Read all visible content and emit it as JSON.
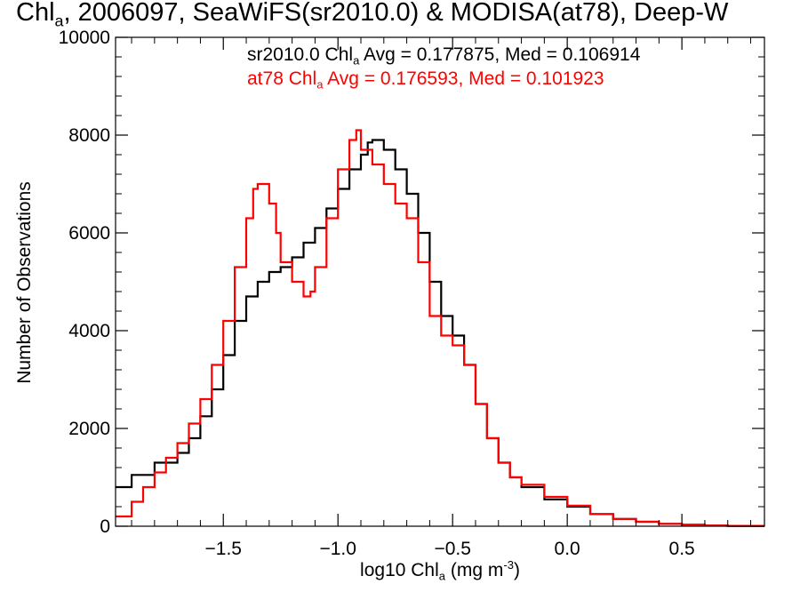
{
  "chart_data": {
    "type": "line",
    "title_parts": {
      "base": "Chl",
      "sub": "a",
      "rest": ", 2006097, SeaWiFS(sr2010.0) & MODISA(at78), Deep-W"
    },
    "xlabel_parts": {
      "pre": "log10 Chl",
      "sub": "a",
      "mid": " (mg m",
      "sup": "-3",
      "post": ")"
    },
    "ylabel": "Number of Observations",
    "xlim": [
      -1.97,
      0.86
    ],
    "ylim": [
      0,
      10000
    ],
    "x_ticks": [
      -1.5,
      -1.0,
      -0.5,
      0.0,
      0.5
    ],
    "x_tick_labels": [
      "−1.5",
      "−1.0",
      "−0.5",
      "0.0",
      "0.5"
    ],
    "y_ticks": [
      0,
      2000,
      4000,
      6000,
      8000,
      10000
    ],
    "y_tick_labels": [
      "0",
      "2000",
      "4000",
      "6000",
      "8000",
      "10000"
    ],
    "step": true,
    "series": [
      {
        "legend_parts": {
          "pre": "sr2010.0 Chl",
          "sub": "a",
          "post": " Avg = 0.177875, Med = 0.106914"
        },
        "color": "#000000",
        "points": [
          [
            -1.97,
            800
          ],
          [
            -1.9,
            1050
          ],
          [
            -1.8,
            1300
          ],
          [
            -1.7,
            1500
          ],
          [
            -1.65,
            1800
          ],
          [
            -1.6,
            2250
          ],
          [
            -1.55,
            2800
          ],
          [
            -1.5,
            3500
          ],
          [
            -1.45,
            4200
          ],
          [
            -1.4,
            4700
          ],
          [
            -1.35,
            5000
          ],
          [
            -1.3,
            5200
          ],
          [
            -1.25,
            5300
          ],
          [
            -1.2,
            5500
          ],
          [
            -1.15,
            5800
          ],
          [
            -1.1,
            6100
          ],
          [
            -1.05,
            6500
          ],
          [
            -1.0,
            6900
          ],
          [
            -0.95,
            7300
          ],
          [
            -0.9,
            7600
          ],
          [
            -0.87,
            7850
          ],
          [
            -0.85,
            7900
          ],
          [
            -0.8,
            7700
          ],
          [
            -0.75,
            7300
          ],
          [
            -0.7,
            6800
          ],
          [
            -0.65,
            6000
          ],
          [
            -0.6,
            5000
          ],
          [
            -0.55,
            4300
          ],
          [
            -0.5,
            3900
          ],
          [
            -0.45,
            3300
          ],
          [
            -0.4,
            2500
          ],
          [
            -0.35,
            1800
          ],
          [
            -0.3,
            1300
          ],
          [
            -0.25,
            1000
          ],
          [
            -0.2,
            800
          ],
          [
            -0.1,
            550
          ],
          [
            0.0,
            400
          ],
          [
            0.1,
            250
          ],
          [
            0.2,
            150
          ],
          [
            0.3,
            90
          ],
          [
            0.4,
            50
          ],
          [
            0.5,
            30
          ],
          [
            0.6,
            15
          ],
          [
            0.7,
            8
          ],
          [
            0.86,
            0
          ]
        ]
      },
      {
        "legend_parts": {
          "pre": "at78 Chl",
          "sub": "a",
          "post": " Avg = 0.176593, Med = 0.101923"
        },
        "color": "#ff0000",
        "points": [
          [
            -1.97,
            200
          ],
          [
            -1.9,
            500
          ],
          [
            -1.85,
            800
          ],
          [
            -1.8,
            1100
          ],
          [
            -1.75,
            1400
          ],
          [
            -1.7,
            1700
          ],
          [
            -1.65,
            2100
          ],
          [
            -1.6,
            2600
          ],
          [
            -1.55,
            3300
          ],
          [
            -1.5,
            4200
          ],
          [
            -1.45,
            5300
          ],
          [
            -1.4,
            6300
          ],
          [
            -1.37,
            6900
          ],
          [
            -1.35,
            7000
          ],
          [
            -1.3,
            6600
          ],
          [
            -1.27,
            6000
          ],
          [
            -1.25,
            5400
          ],
          [
            -1.2,
            5000
          ],
          [
            -1.15,
            4700
          ],
          [
            -1.12,
            4800
          ],
          [
            -1.1,
            5300
          ],
          [
            -1.05,
            6300
          ],
          [
            -1.0,
            7300
          ],
          [
            -0.95,
            7900
          ],
          [
            -0.92,
            8100
          ],
          [
            -0.9,
            7700
          ],
          [
            -0.85,
            7400
          ],
          [
            -0.8,
            7000
          ],
          [
            -0.75,
            6600
          ],
          [
            -0.7,
            6300
          ],
          [
            -0.65,
            5400
          ],
          [
            -0.6,
            4300
          ],
          [
            -0.55,
            3900
          ],
          [
            -0.5,
            3700
          ],
          [
            -0.45,
            3300
          ],
          [
            -0.4,
            2500
          ],
          [
            -0.35,
            1800
          ],
          [
            -0.3,
            1300
          ],
          [
            -0.25,
            1000
          ],
          [
            -0.2,
            850
          ],
          [
            -0.1,
            600
          ],
          [
            0.0,
            420
          ],
          [
            0.1,
            250
          ],
          [
            0.2,
            150
          ],
          [
            0.3,
            90
          ],
          [
            0.4,
            50
          ],
          [
            0.5,
            30
          ],
          [
            0.6,
            15
          ],
          [
            0.7,
            8
          ],
          [
            0.86,
            0
          ]
        ]
      }
    ]
  }
}
